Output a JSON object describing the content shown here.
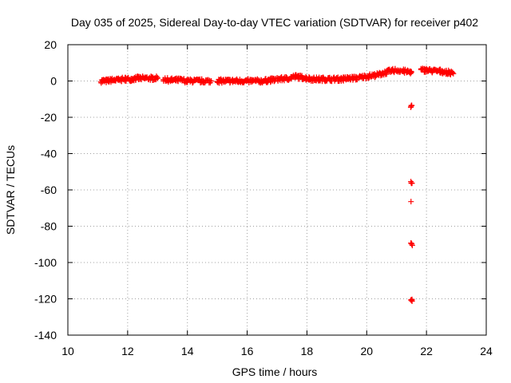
{
  "chart_data": {
    "type": "scatter",
    "title": "Day 035 of 2025, Sidereal Day-to-day VTEC variation (SDTVAR) for receiver p402",
    "xlabel": "GPS time / hours",
    "ylabel": "SDTVAR / TECUs",
    "xlim": [
      10,
      24
    ],
    "ylim": [
      -140,
      20
    ],
    "xticks": [
      10,
      12,
      14,
      16,
      18,
      20,
      22,
      24
    ],
    "yticks": [
      -140,
      -120,
      -100,
      -80,
      -60,
      -40,
      -20,
      0,
      20
    ],
    "grid": true,
    "marker": "+",
    "color": "#ff0000",
    "series": [
      {
        "name": "SDTVAR",
        "segments": [
          {
            "x": [
              11.1,
              11.3,
              11.5,
              11.7,
              11.9,
              12.1,
              12.3,
              12.5,
              12.7,
              12.9,
              13.0
            ],
            "y": [
              0,
              0,
              0.5,
              0.5,
              1,
              1,
              1.5,
              1.5,
              1.5,
              1.5,
              1.5
            ]
          },
          {
            "x": [
              13.2,
              13.4,
              13.6,
              13.8,
              14.0,
              14.2,
              14.4,
              14.6,
              14.8
            ],
            "y": [
              1,
              0.5,
              0.5,
              0.5,
              0,
              0,
              0,
              0,
              0
            ]
          },
          {
            "x": [
              15.0,
              15.3,
              15.6,
              15.9,
              16.2,
              16.5,
              16.8,
              17.1,
              17.4,
              17.6,
              17.8,
              18.0,
              18.2,
              18.4,
              18.6,
              18.8,
              19.0,
              19.2,
              19.4,
              19.6,
              19.8,
              20.0,
              20.2,
              20.4,
              20.6,
              20.8,
              21.0,
              21.2,
              21.4,
              21.5
            ],
            "y": [
              0,
              0,
              0,
              0,
              0,
              0,
              0.5,
              1,
              1.5,
              2.5,
              2,
              1.5,
              1,
              1,
              1,
              1,
              1,
              1,
              1.5,
              1.5,
              2,
              2.5,
              3,
              3.5,
              4.5,
              5.5,
              6,
              5.5,
              5,
              5
            ]
          },
          {
            "x": [
              21.8,
              22.0,
              22.2,
              22.4,
              22.6,
              22.8,
              22.9
            ],
            "y": [
              6,
              6,
              5.5,
              5.5,
              5,
              4.5,
              4
            ]
          }
        ],
        "outliers": [
          {
            "x": 21.5,
            "y": -14
          },
          {
            "x": 21.5,
            "y": -56
          },
          {
            "x": 21.5,
            "y": -66
          },
          {
            "x": 21.5,
            "y": -90
          },
          {
            "x": 21.5,
            "y": -121
          }
        ]
      }
    ]
  }
}
